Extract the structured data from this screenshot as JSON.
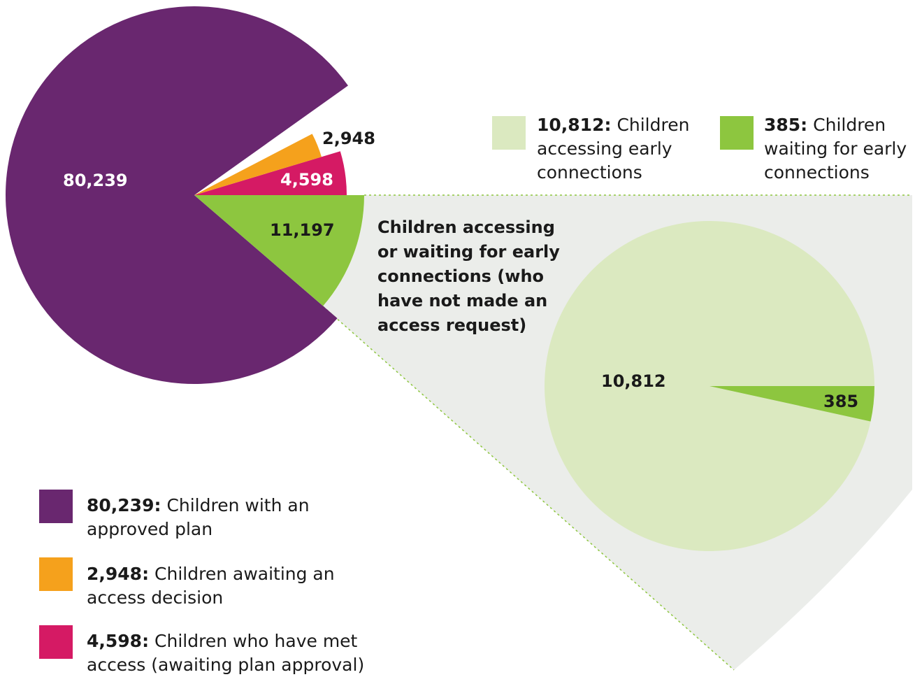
{
  "chart_data": [
    {
      "type": "pie",
      "slices": [
        {
          "name": "80,239",
          "value": 80239,
          "color": "#69276f",
          "legend_bold": "80,239:",
          "legend_text": "Children with an approved plan"
        },
        {
          "name": "2,948",
          "value": 2948,
          "color": "#f5a11c",
          "legend_bold": "2,948:",
          "legend_text": "Children awaiting an access decision"
        },
        {
          "name": "4,598",
          "value": 4598,
          "color": "#d51a64",
          "legend_bold": "4,598:",
          "legend_text": "Children who have met access (awaiting plan approval)"
        },
        {
          "name": "11,197",
          "value": 11197,
          "color": "#8dc63f"
        }
      ],
      "labels": [
        "80,239",
        "2,948",
        "4,598",
        "11,197"
      ]
    },
    {
      "type": "pie",
      "title": "Children accessing or waiting for early connections (who have not made an access request)",
      "slices": [
        {
          "name": "10,812",
          "value": 10812,
          "color": "#dbe9c0",
          "legend_bold": "10,812:",
          "legend_text": "Children accessing early connections"
        },
        {
          "name": "385",
          "value": 385,
          "color": "#8dc63f",
          "legend_bold": "385:",
          "legend_text": "Children waiting for early connections"
        }
      ],
      "labels": [
        "10,812",
        "385"
      ]
    }
  ],
  "colors": {
    "expand_band": "#ebedea",
    "connector": "#8dc63f"
  }
}
